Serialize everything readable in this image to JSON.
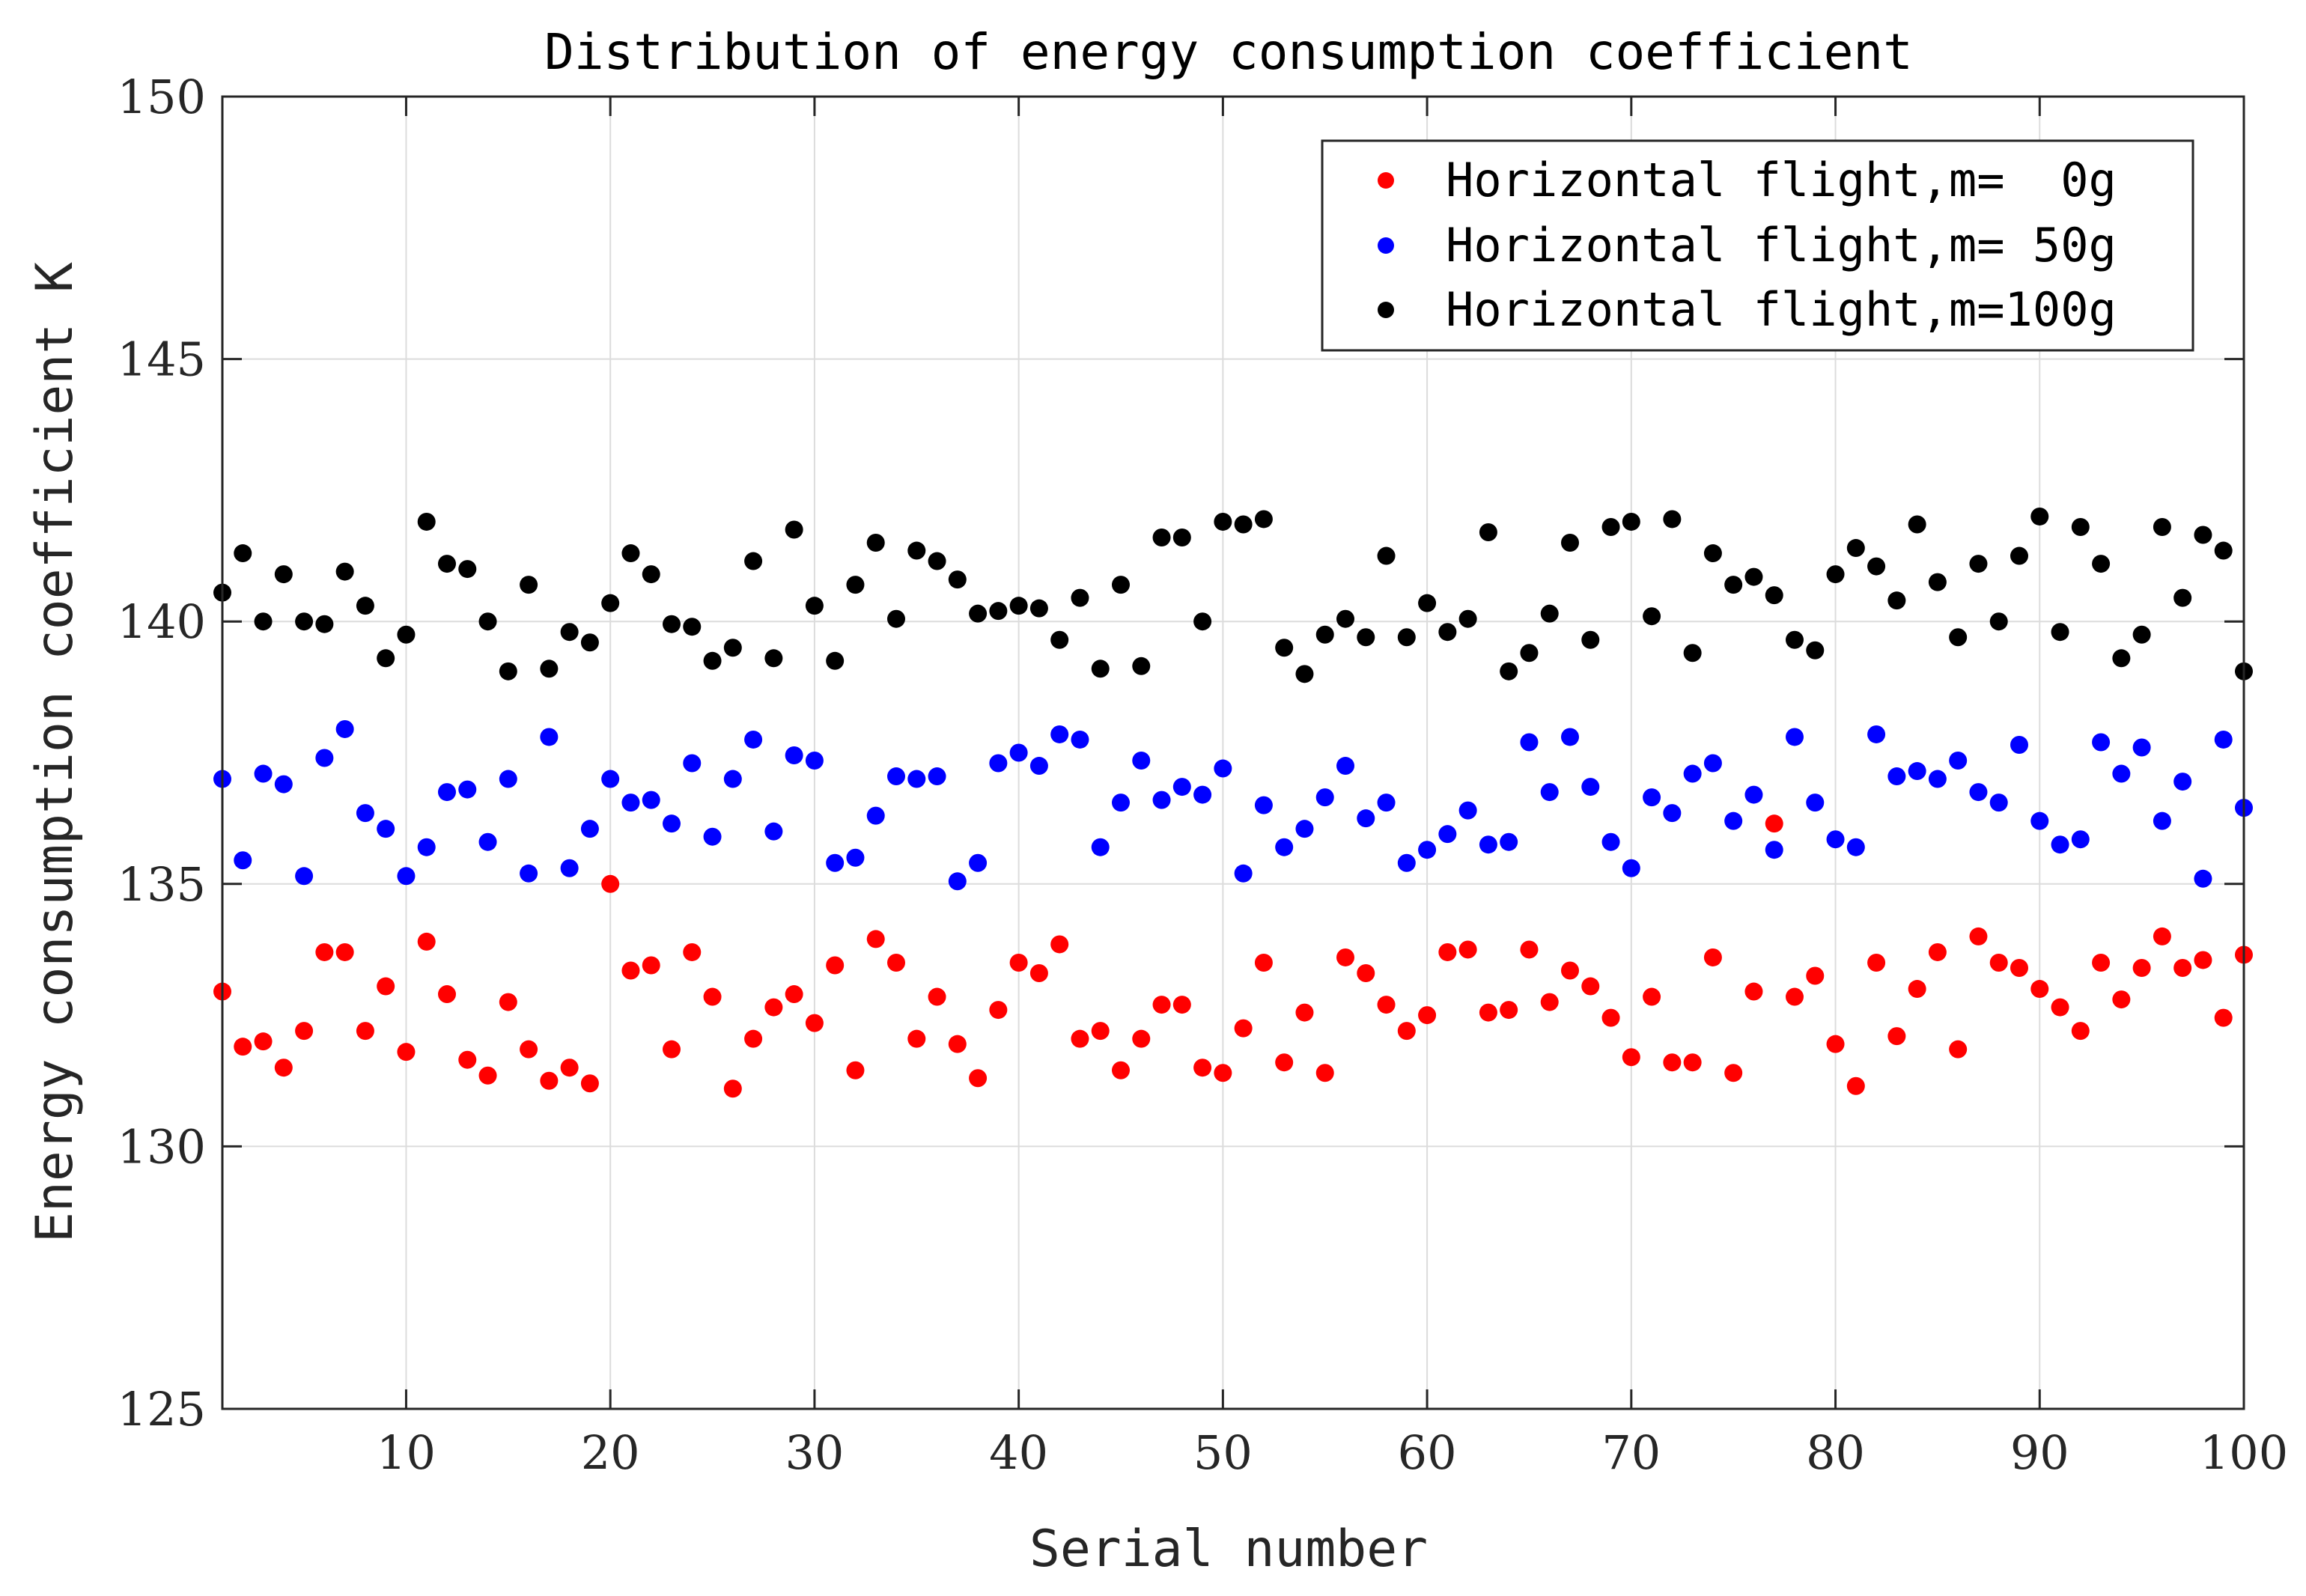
{
  "chart_data": {
    "type": "scatter",
    "title": "Distribution of energy consumption coefficient",
    "xlabel": "Serial number",
    "ylabel": "Energy consumption coefficient K",
    "xlim": [
      1,
      100
    ],
    "ylim": [
      125,
      150
    ],
    "xticks": [
      10,
      20,
      30,
      40,
      50,
      60,
      70,
      80,
      90,
      100
    ],
    "yticks": [
      125,
      130,
      135,
      140,
      145,
      150
    ],
    "grid": true,
    "legend_position": "top-right",
    "series": [
      {
        "name": "Horizontal flight,m=  0g",
        "color": "#ff0000",
        "x": [
          1,
          2,
          3,
          4,
          5,
          6,
          7,
          8,
          9,
          10,
          11,
          12,
          13,
          14,
          15,
          16,
          17,
          18,
          19,
          20,
          21,
          22,
          23,
          24,
          25,
          26,
          27,
          28,
          29,
          30,
          31,
          32,
          33,
          34,
          35,
          36,
          37,
          38,
          39,
          40,
          41,
          42,
          43,
          44,
          45,
          46,
          47,
          48,
          49,
          50,
          51,
          52,
          53,
          54,
          55,
          56,
          57,
          58,
          59,
          60,
          61,
          62,
          63,
          64,
          65,
          66,
          67,
          68,
          69,
          70,
          71,
          72,
          73,
          74,
          75,
          76,
          77,
          78,
          79,
          80,
          81,
          82,
          83,
          84,
          85,
          86,
          87,
          88,
          89,
          90,
          91,
          92,
          93,
          94,
          95,
          96,
          97,
          98,
          99,
          100
        ],
        "values": [
          132.95,
          131.9,
          132.0,
          131.5,
          132.2,
          133.7,
          133.7,
          132.2,
          133.05,
          131.8,
          133.9,
          132.9,
          131.65,
          131.35,
          132.75,
          131.85,
          131.25,
          131.5,
          131.2,
          135.0,
          133.35,
          133.45,
          131.85,
          133.7,
          132.85,
          131.1,
          132.05,
          132.65,
          132.9,
          132.35,
          133.45,
          131.45,
          133.95,
          133.5,
          132.05,
          132.85,
          131.95,
          131.3,
          132.6,
          133.5,
          133.3,
          133.85,
          132.05,
          132.2,
          131.45,
          132.05,
          132.7,
          132.7,
          131.5,
          131.4,
          132.25,
          133.5,
          131.6,
          132.55,
          131.4,
          133.6,
          133.3,
          132.7,
          132.2,
          132.5,
          133.7,
          133.75,
          132.55,
          132.6,
          133.75,
          132.75,
          133.35,
          133.05,
          132.45,
          131.7,
          132.85,
          131.6,
          131.6,
          133.6,
          131.4,
          132.95,
          136.15,
          132.85,
          133.25,
          131.95,
          131.15,
          133.5,
          132.1,
          133.0,
          133.7,
          131.85,
          134.0,
          133.5,
          133.4,
          133.0,
          132.65,
          132.2,
          133.5,
          132.8,
          133.4,
          134.0,
          133.4,
          133.55,
          132.45,
          133.65
        ]
      },
      {
        "name": "Horizontal flight,m= 50g",
        "color": "#0000ff",
        "x": [
          1,
          2,
          3,
          4,
          5,
          6,
          7,
          8,
          9,
          10,
          11,
          12,
          13,
          14,
          15,
          16,
          17,
          18,
          19,
          20,
          21,
          22,
          23,
          24,
          25,
          26,
          27,
          28,
          29,
          30,
          31,
          32,
          33,
          34,
          35,
          36,
          37,
          38,
          39,
          40,
          41,
          42,
          43,
          44,
          45,
          46,
          47,
          48,
          49,
          50,
          51,
          52,
          53,
          54,
          55,
          56,
          57,
          58,
          59,
          60,
          61,
          62,
          63,
          64,
          65,
          66,
          67,
          68,
          69,
          70,
          71,
          72,
          73,
          74,
          75,
          76,
          77,
          78,
          79,
          80,
          81,
          82,
          83,
          84,
          85,
          86,
          87,
          88,
          89,
          90,
          91,
          92,
          93,
          94,
          95,
          96,
          97,
          98,
          99,
          100
        ],
        "values": [
          137.0,
          135.45,
          137.1,
          136.9,
          135.15,
          137.4,
          137.95,
          136.35,
          136.05,
          135.15,
          135.7,
          136.75,
          136.8,
          135.8,
          137.0,
          135.2,
          137.8,
          135.3,
          136.05,
          137.0,
          136.55,
          136.6,
          136.15,
          137.3,
          135.9,
          137.0,
          137.75,
          136.0,
          137.45,
          137.35,
          135.4,
          135.5,
          136.3,
          137.05,
          137.0,
          137.05,
          135.05,
          135.4,
          137.3,
          137.5,
          137.25,
          137.85,
          137.75,
          135.7,
          136.55,
          137.35,
          136.6,
          136.85,
          136.7,
          137.2,
          135.2,
          136.5,
          135.7,
          136.05,
          136.65,
          137.25,
          136.25,
          136.55,
          135.4,
          135.65,
          135.95,
          136.4,
          135.75,
          135.8,
          137.7,
          136.75,
          137.8,
          136.85,
          135.8,
          135.3,
          136.65,
          136.35,
          137.1,
          137.3,
          136.2,
          136.7,
          135.65,
          137.8,
          136.55,
          135.85,
          135.7,
          137.85,
          137.05,
          137.15,
          137.0,
          137.35,
          136.75,
          136.55,
          137.65,
          136.2,
          135.75,
          135.85,
          137.7,
          137.1,
          137.6,
          136.2,
          136.95,
          135.1,
          137.75,
          136.45
        ]
      },
      {
        "name": "Horizontal flight,m=100g",
        "color": "#000000",
        "x": [
          1,
          2,
          3,
          4,
          5,
          6,
          7,
          8,
          9,
          10,
          11,
          12,
          13,
          14,
          15,
          16,
          17,
          18,
          19,
          20,
          21,
          22,
          23,
          24,
          25,
          26,
          27,
          28,
          29,
          30,
          31,
          32,
          33,
          34,
          35,
          36,
          37,
          38,
          39,
          40,
          41,
          42,
          43,
          44,
          45,
          46,
          47,
          48,
          49,
          50,
          51,
          52,
          53,
          54,
          55,
          56,
          57,
          58,
          59,
          60,
          61,
          62,
          63,
          64,
          65,
          66,
          67,
          68,
          69,
          70,
          71,
          72,
          73,
          74,
          75,
          76,
          77,
          78,
          79,
          80,
          81,
          82,
          83,
          84,
          85,
          86,
          87,
          88,
          89,
          90,
          91,
          92,
          93,
          94,
          95,
          96,
          97,
          98,
          99,
          100
        ],
        "values": [
          140.55,
          141.3,
          140.0,
          140.9,
          140.0,
          139.95,
          140.95,
          140.3,
          139.3,
          139.75,
          141.9,
          141.1,
          141.0,
          140.0,
          139.05,
          140.7,
          139.1,
          139.8,
          139.6,
          140.35,
          141.3,
          140.9,
          139.95,
          139.9,
          139.25,
          139.5,
          141.15,
          139.3,
          141.75,
          140.3,
          139.25,
          140.7,
          141.5,
          140.05,
          141.35,
          141.15,
          140.8,
          140.15,
          140.2,
          140.3,
          140.25,
          139.65,
          140.45,
          139.1,
          140.7,
          139.15,
          141.6,
          141.6,
          140.0,
          141.9,
          141.85,
          141.95,
          139.5,
          139.0,
          139.75,
          140.05,
          139.7,
          141.25,
          139.7,
          140.35,
          139.8,
          140.05,
          141.7,
          139.05,
          139.4,
          140.15,
          141.5,
          139.65,
          141.8,
          141.9,
          140.1,
          141.95,
          139.4,
          141.3,
          140.7,
          140.85,
          140.5,
          139.65,
          139.45,
          140.9,
          141.4,
          141.05,
          140.4,
          141.85,
          140.75,
          139.7,
          141.1,
          140.0,
          141.25,
          142.0,
          139.8,
          141.8,
          141.1,
          139.3,
          139.75,
          141.8,
          140.45,
          141.65,
          141.35,
          139.05
        ]
      }
    ]
  }
}
